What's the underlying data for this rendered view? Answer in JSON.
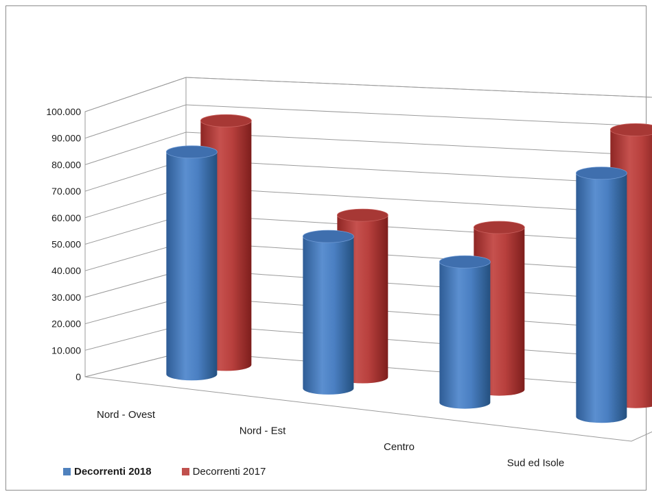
{
  "chart_data": {
    "type": "bar",
    "style": "3d-cylinder",
    "title": "",
    "xlabel": "",
    "ylabel": "",
    "ylim": [
      0,
      100000
    ],
    "y_ticks": [
      "0",
      "10.000",
      "20.000",
      "30.000",
      "40.000",
      "50.000",
      "60.000",
      "70.000",
      "80.000",
      "90.000",
      "100.000"
    ],
    "categories": [
      "Nord - Ovest",
      "Nord - Est",
      "Centro",
      "Sud ed Isole"
    ],
    "series": [
      {
        "name": "Decorrenti 2018",
        "values": [
          82000,
          55000,
          50000,
          85000
        ],
        "color": "#4f81bd",
        "bold_label": true
      },
      {
        "name": "Decorrenti 2017",
        "values": [
          89000,
          58000,
          57000,
          94000
        ],
        "color": "#c0504d",
        "bold_label": false
      }
    ],
    "grid": true,
    "legend_position": "bottom-left"
  }
}
